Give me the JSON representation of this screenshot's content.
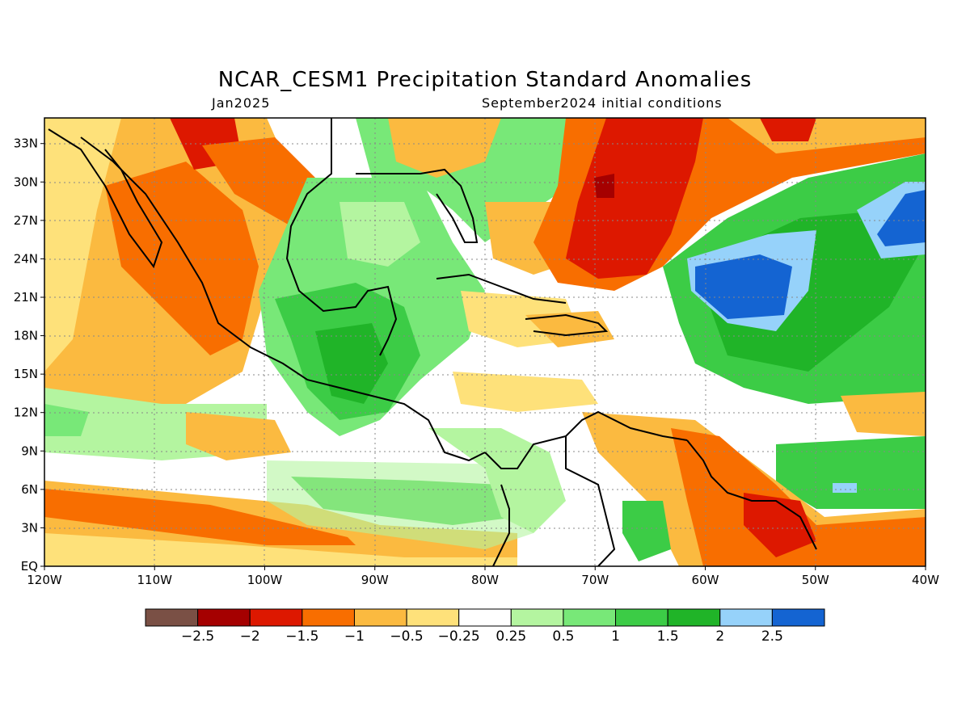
{
  "title": "NCAR_CESM1 Precipitation Standard Anomalies",
  "subtitle_left": "Jan2025",
  "subtitle_right": "September2024 initial conditions",
  "map": {
    "lon_range": [
      -120,
      -40
    ],
    "lat_range": [
      0,
      35
    ],
    "x_ticks": [
      "120W",
      "110W",
      "100W",
      "90W",
      "80W",
      "70W",
      "60W",
      "50W",
      "40W"
    ],
    "y_ticks": [
      "EQ",
      "3N",
      "6N",
      "9N",
      "12N",
      "15N",
      "18N",
      "21N",
      "24N",
      "27N",
      "30N",
      "33N"
    ],
    "grid": true
  },
  "colorbar": {
    "labels": [
      "−2.5",
      "−2",
      "−1.5",
      "−1",
      "−0.5",
      "−0.25",
      "0.25",
      "0.5",
      "1",
      "1.5",
      "2",
      "2.5"
    ],
    "colors": [
      "#7a5045",
      "#a50000",
      "#dd1800",
      "#f86e00",
      "#fbba40",
      "#fee17a",
      "#ffffff",
      "#b4f5a0",
      "#78e878",
      "#3ccc46",
      "#20b428",
      "#96d2fa",
      "#1464d2"
    ]
  },
  "regions": [
    {
      "name": "orange-mexico",
      "color": "#f86e00"
    },
    {
      "name": "red-atlantic",
      "color": "#dd1800"
    },
    {
      "name": "blue-atlantic",
      "color": "#1464d2"
    },
    {
      "name": "green-central-america",
      "color": "#3ccc46"
    }
  ]
}
